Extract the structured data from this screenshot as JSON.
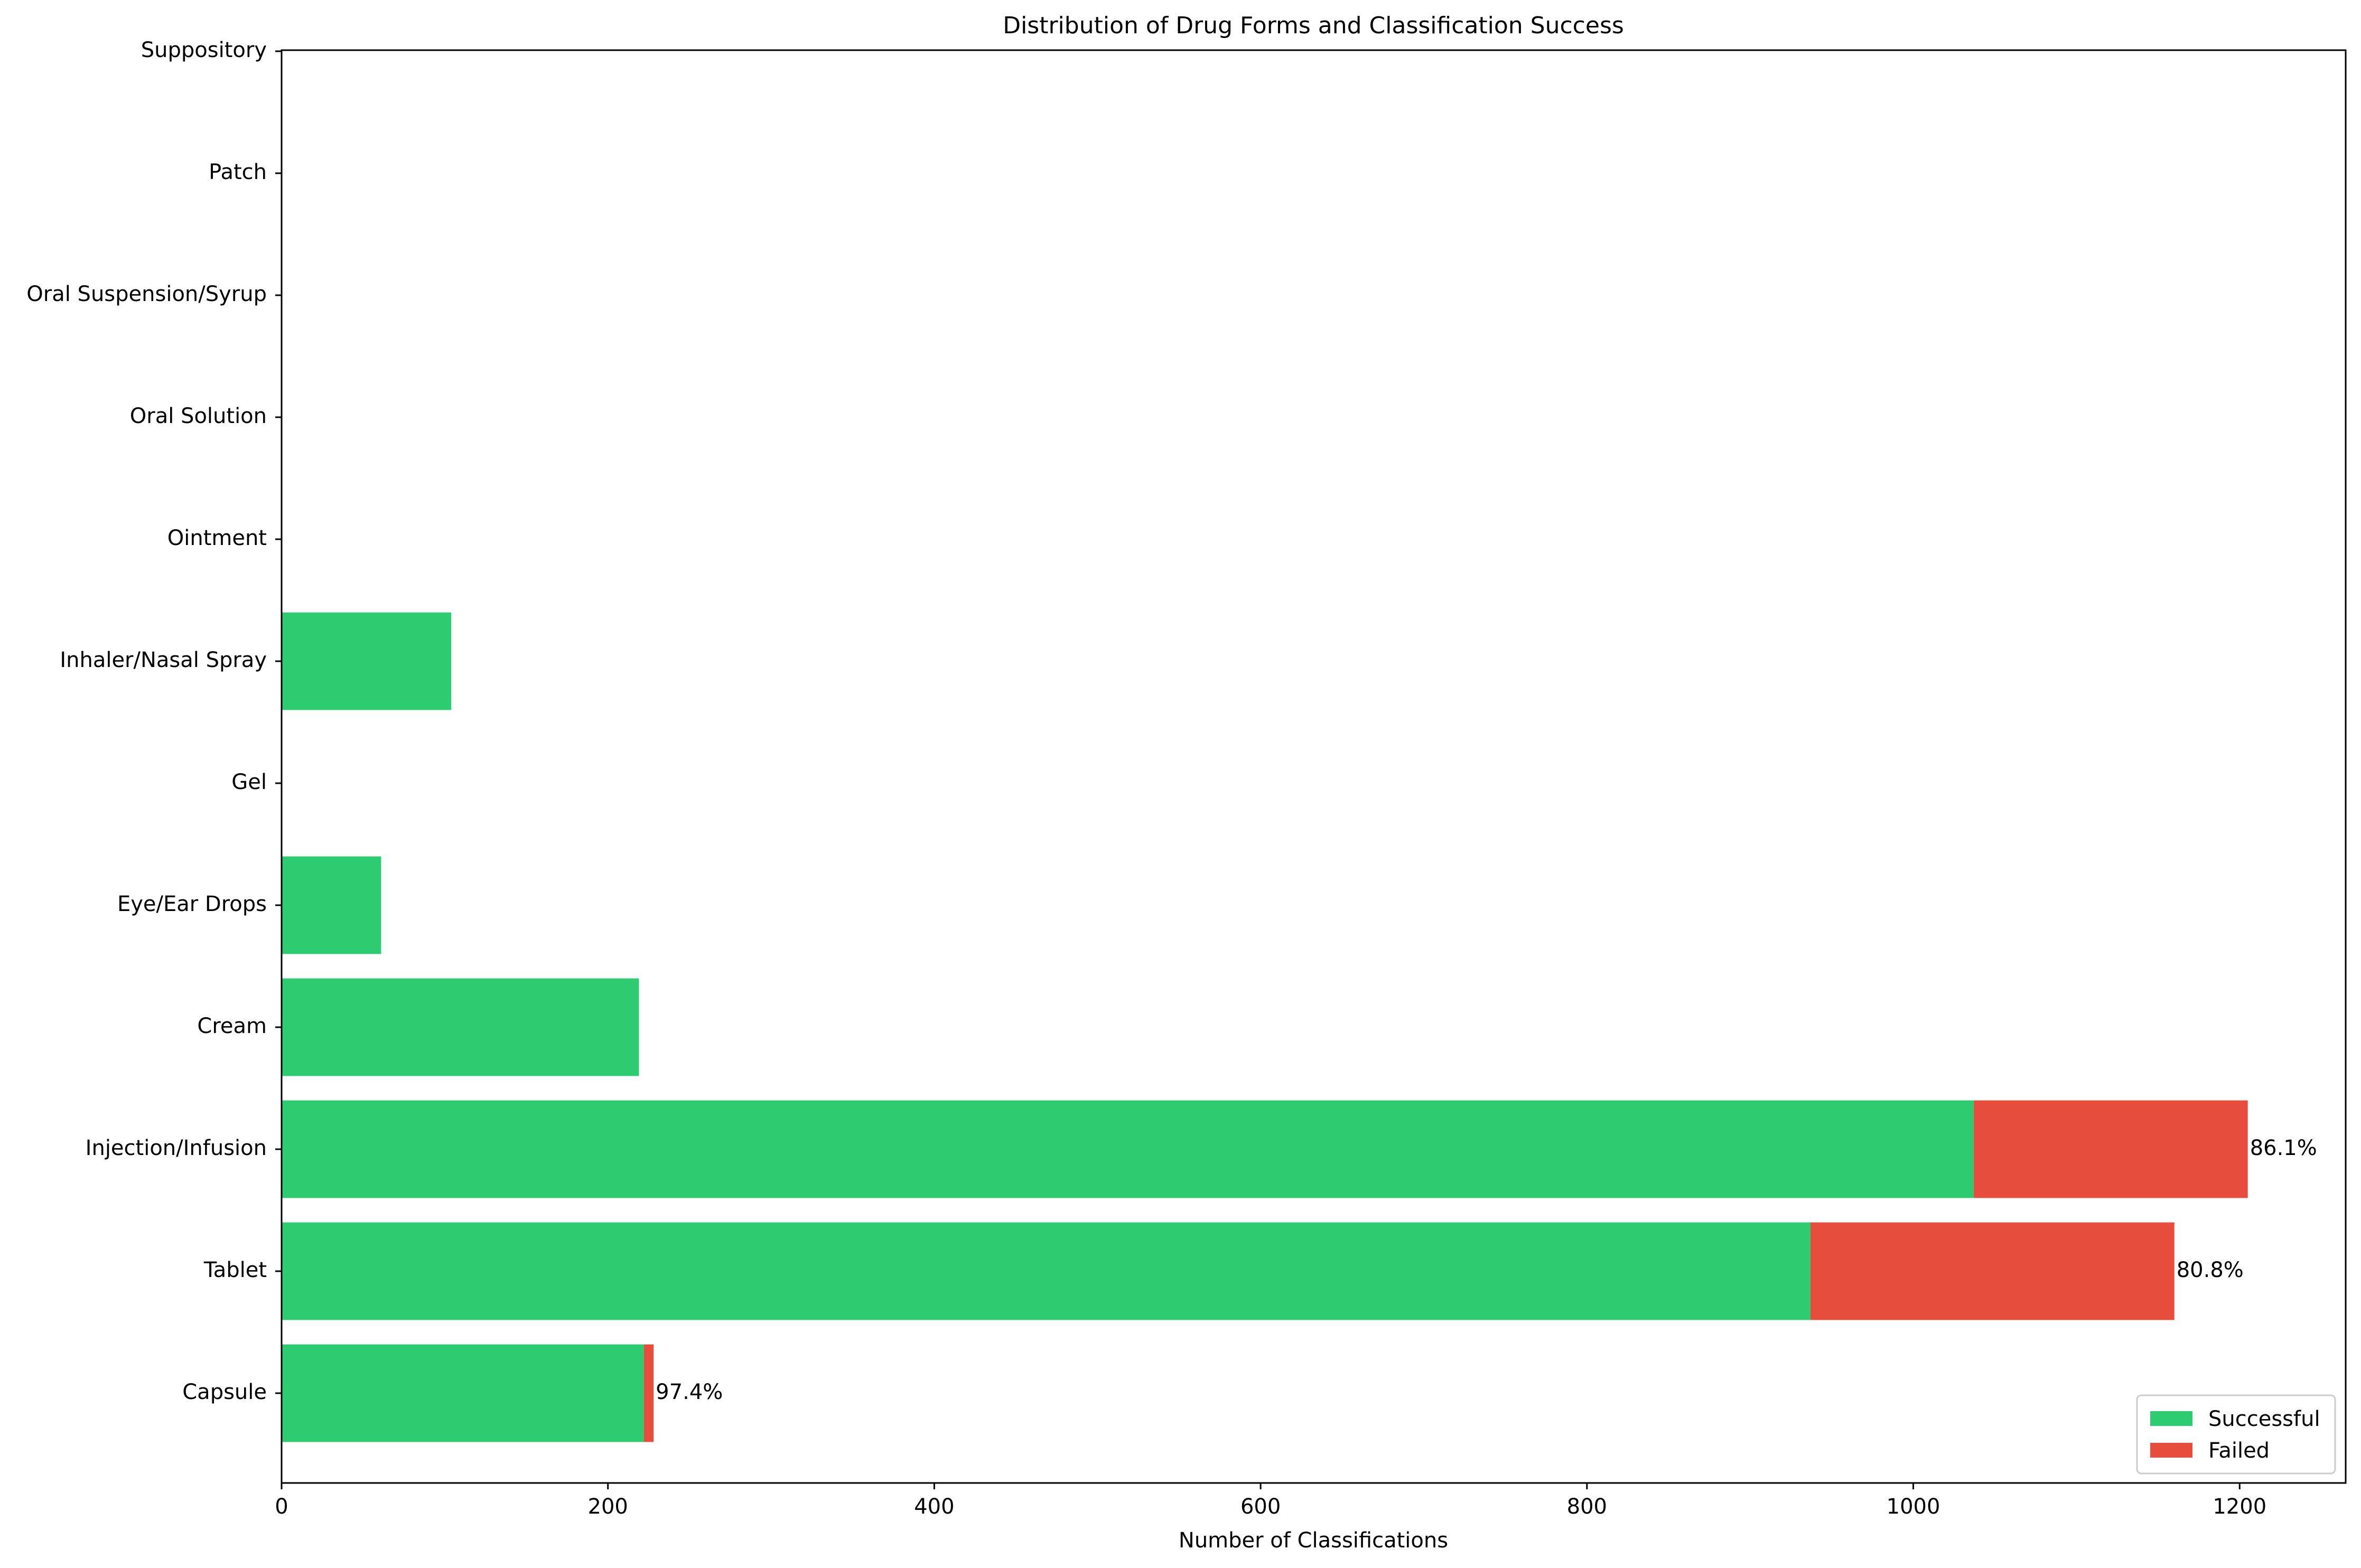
{
  "chart_data": {
    "type": "bar",
    "orientation": "horizontal",
    "stacked": true,
    "title": "Distribution of Drug Forms and Classification Success",
    "xlabel": "Number of Classifications",
    "ylabel": "",
    "xlim": [
      0,
      1265
    ],
    "xticks": [
      0,
      200,
      400,
      600,
      800,
      1000,
      1200
    ],
    "categories": [
      "Capsule",
      "Tablet",
      "Injection/Infusion",
      "Cream",
      "Eye/Ear Drops",
      "Gel",
      "Inhaler/Nasal Spray",
      "Ointment",
      "Oral Solution",
      "Oral Suspension/Syrup",
      "Patch",
      "Suppository"
    ],
    "series": [
      {
        "name": "Successful",
        "color": "#2ecc71",
        "values": [
          222,
          937,
          1037,
          219,
          61,
          0,
          104,
          0,
          0,
          0,
          0,
          0
        ]
      },
      {
        "name": "Failed",
        "color": "#e74c3c",
        "values": [
          6,
          223,
          168,
          0,
          0,
          0,
          0,
          0,
          0,
          0,
          0,
          0
        ]
      }
    ],
    "annotations": [
      {
        "category": "Capsule",
        "text": "97.4%"
      },
      {
        "category": "Tablet",
        "text": "80.8%"
      },
      {
        "category": "Injection/Infusion",
        "text": "86.1%"
      }
    ],
    "grid": false,
    "legend_position": "lower-right"
  }
}
